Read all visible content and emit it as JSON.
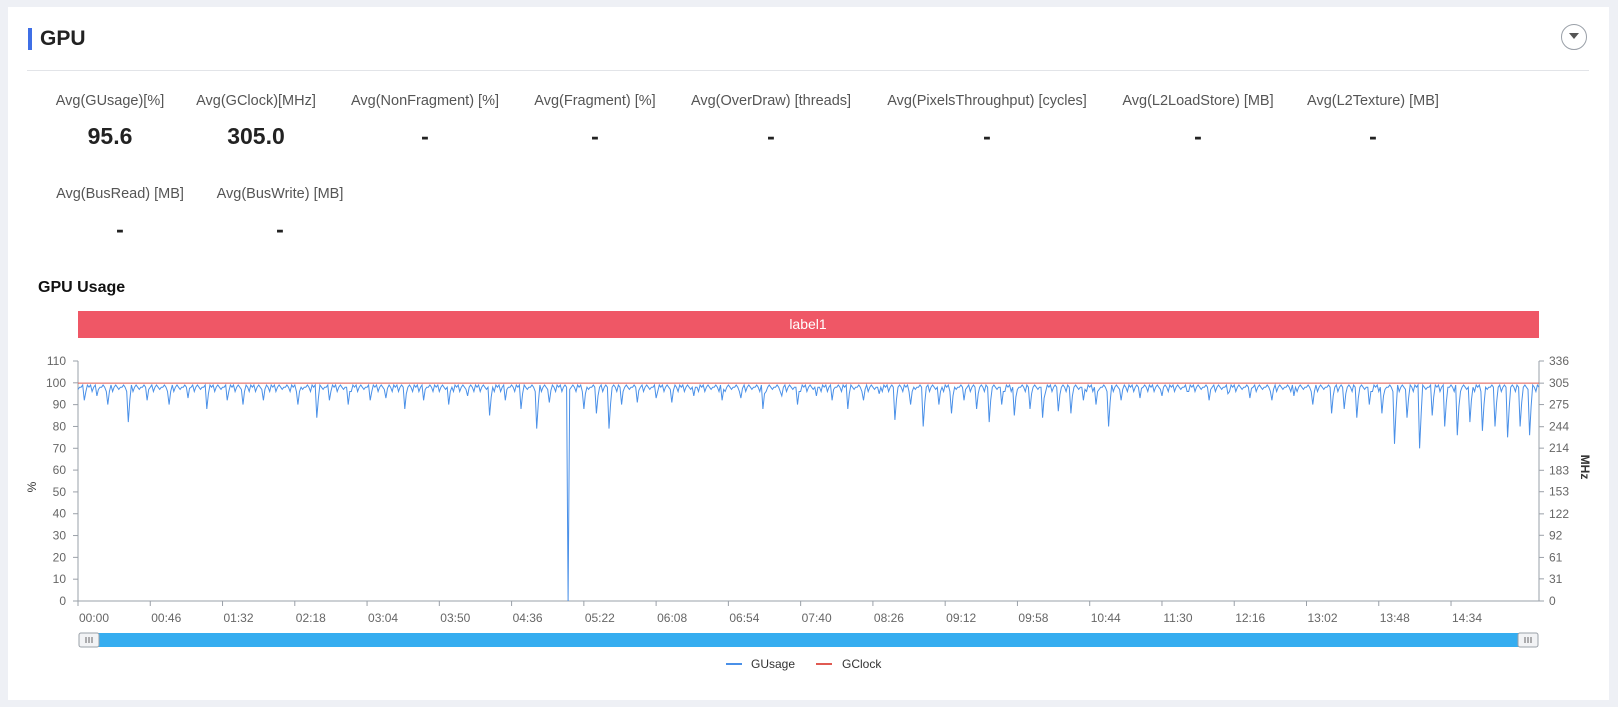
{
  "header": {
    "title": "GPU"
  },
  "metrics_row1": [
    {
      "label": "Avg(GUsage)[%]",
      "value": "95.6"
    },
    {
      "label": "Avg(GClock)[MHz]",
      "value": "305.0"
    },
    {
      "label": "Avg(NonFragment) [%]",
      "value": "-"
    },
    {
      "label": "Avg(Fragment) [%]",
      "value": "-"
    },
    {
      "label": "Avg(OverDraw) [threads]",
      "value": "-"
    },
    {
      "label": "Avg(PixelsThroughput) [cycles]",
      "value": "-"
    },
    {
      "label": "Avg(L2LoadStore) [MB]",
      "value": "-"
    },
    {
      "label": "Avg(L2Texture) [MB]",
      "value": "-"
    }
  ],
  "metrics_row2": [
    {
      "label": "Avg(BusRead) [MB]",
      "value": "-"
    },
    {
      "label": "Avg(BusWrite) [MB]",
      "value": "-"
    }
  ],
  "section": {
    "title": "GPU Usage"
  },
  "chart_data": {
    "type": "line",
    "title": "GPU Usage",
    "band_label": "label1",
    "band_color": "#ef5766",
    "xlabel": "",
    "x_ticks": [
      "00:00",
      "00:46",
      "01:32",
      "02:18",
      "03:04",
      "03:50",
      "04:36",
      "05:22",
      "06:08",
      "06:54",
      "07:40",
      "08:26",
      "09:12",
      "09:58",
      "10:44",
      "11:30",
      "12:16",
      "13:02",
      "13:48",
      "14:34"
    ],
    "x_range_seconds": [
      0,
      930
    ],
    "y_left": {
      "label": "%",
      "ticks": [
        0,
        10,
        20,
        30,
        40,
        50,
        60,
        70,
        80,
        90,
        100,
        110
      ],
      "range": [
        0,
        110
      ]
    },
    "y_right": {
      "label": "MHz",
      "ticks": [
        0,
        31,
        61,
        92,
        122,
        153,
        183,
        214,
        244,
        275,
        305,
        336
      ],
      "range": [
        0,
        336
      ]
    },
    "legend_position": "bottom-center",
    "grid": false,
    "series": [
      {
        "name": "GUsage",
        "axis": "left",
        "color": "#4a90e8",
        "base": 98,
        "dips": [
          [
            4,
            92
          ],
          [
            12,
            94
          ],
          [
            19,
            90
          ],
          [
            32,
            82
          ],
          [
            44,
            92
          ],
          [
            58,
            90
          ],
          [
            70,
            93
          ],
          [
            82,
            88
          ],
          [
            95,
            92
          ],
          [
            105,
            90
          ],
          [
            118,
            92
          ],
          [
            140,
            90
          ],
          [
            152,
            84
          ],
          [
            160,
            92
          ],
          [
            172,
            90
          ],
          [
            186,
            92
          ],
          [
            196,
            93
          ],
          [
            208,
            88
          ],
          [
            220,
            92
          ],
          [
            236,
            90
          ],
          [
            248,
            94
          ],
          [
            262,
            85
          ],
          [
            272,
            92
          ],
          [
            282,
            88
          ],
          [
            292,
            79
          ],
          [
            300,
            91
          ],
          [
            312,
            84
          ],
          [
            322,
            88
          ],
          [
            330,
            86
          ],
          [
            338,
            79
          ],
          [
            346,
            90
          ],
          [
            356,
            91
          ],
          [
            368,
            93
          ],
          [
            378,
            91
          ],
          [
            392,
            94
          ],
          [
            410,
            92
          ],
          [
            422,
            93
          ],
          [
            436,
            88
          ],
          [
            448,
            94
          ],
          [
            458,
            90
          ],
          [
            470,
            94
          ],
          [
            480,
            92
          ],
          [
            490,
            88
          ],
          [
            500,
            92
          ],
          [
            510,
            95
          ],
          [
            520,
            83
          ],
          [
            530,
            90
          ],
          [
            538,
            80
          ],
          [
            548,
            90
          ],
          [
            556,
            86
          ],
          [
            564,
            92
          ],
          [
            572,
            88
          ],
          [
            580,
            82
          ],
          [
            588,
            90
          ],
          [
            596,
            85
          ],
          [
            606,
            88
          ],
          [
            614,
            84
          ],
          [
            624,
            87
          ],
          [
            632,
            86
          ],
          [
            640,
            92
          ],
          [
            648,
            90
          ],
          [
            656,
            80
          ],
          [
            664,
            92
          ],
          [
            676,
            93
          ],
          [
            690,
            94
          ],
          [
            706,
            96
          ],
          [
            720,
            92
          ],
          [
            732,
            95
          ],
          [
            746,
            93
          ],
          [
            760,
            92
          ],
          [
            774,
            94
          ],
          [
            786,
            90
          ],
          [
            798,
            86
          ],
          [
            806,
            88
          ],
          [
            814,
            84
          ],
          [
            822,
            90
          ],
          [
            830,
            86
          ],
          [
            838,
            72
          ],
          [
            846,
            84
          ],
          [
            854,
            70
          ],
          [
            862,
            85
          ],
          [
            870,
            80
          ],
          [
            878,
            76
          ],
          [
            886,
            82
          ],
          [
            894,
            78
          ],
          [
            902,
            80
          ],
          [
            910,
            75
          ],
          [
            918,
            80
          ],
          [
            924,
            76
          ]
        ],
        "spike": [
          312,
          0
        ]
      },
      {
        "name": "GClock",
        "axis": "right",
        "color": "#e05a52",
        "values_constant": 305
      }
    ],
    "slider_range": [
      0,
      1
    ]
  },
  "colors": {
    "accent": "#3f6fe6",
    "gusage": "#4a90e8",
    "gclock": "#e05a52",
    "slider": "#35adf0"
  },
  "icons": {
    "collapse": "chevron-down-icon"
  }
}
